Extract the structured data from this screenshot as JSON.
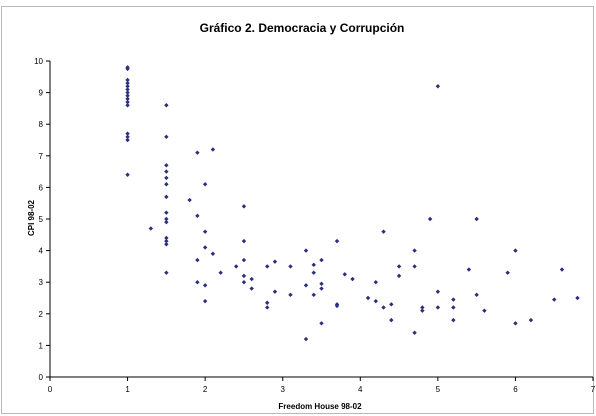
{
  "chart_data": {
    "type": "scatter",
    "title": "Gráfico 2. Democracia y Corrupción",
    "xlabel": "Freedom House 98-02",
    "ylabel": "CPI 98-02",
    "xlim": [
      0,
      7
    ],
    "ylim": [
      0,
      10
    ],
    "x_ticks": [
      0,
      1,
      2,
      3,
      4,
      5,
      6,
      7
    ],
    "y_ticks": [
      0,
      1,
      2,
      3,
      4,
      5,
      6,
      7,
      8,
      9,
      10
    ],
    "grid": false,
    "legend": "none",
    "marker_color": "#2b2f7e",
    "points": [
      {
        "x": 1.0,
        "y": 9.8
      },
      {
        "x": 1.0,
        "y": 9.75
      },
      {
        "x": 1.0,
        "y": 9.4
      },
      {
        "x": 1.0,
        "y": 9.3
      },
      {
        "x": 1.0,
        "y": 9.2
      },
      {
        "x": 1.0,
        "y": 9.1
      },
      {
        "x": 1.0,
        "y": 9.0
      },
      {
        "x": 1.0,
        "y": 8.9
      },
      {
        "x": 1.0,
        "y": 8.8
      },
      {
        "x": 1.0,
        "y": 8.7
      },
      {
        "x": 1.0,
        "y": 8.6
      },
      {
        "x": 1.0,
        "y": 7.7
      },
      {
        "x": 1.0,
        "y": 7.6
      },
      {
        "x": 1.0,
        "y": 7.5
      },
      {
        "x": 1.0,
        "y": 6.4
      },
      {
        "x": 1.3,
        "y": 4.7
      },
      {
        "x": 1.5,
        "y": 8.6
      },
      {
        "x": 1.5,
        "y": 7.6
      },
      {
        "x": 1.5,
        "y": 6.7
      },
      {
        "x": 1.5,
        "y": 6.5
      },
      {
        "x": 1.5,
        "y": 6.3
      },
      {
        "x": 1.5,
        "y": 6.1
      },
      {
        "x": 1.5,
        "y": 5.7
      },
      {
        "x": 1.5,
        "y": 5.2
      },
      {
        "x": 1.5,
        "y": 5.0
      },
      {
        "x": 1.5,
        "y": 4.9
      },
      {
        "x": 1.5,
        "y": 4.4
      },
      {
        "x": 1.5,
        "y": 4.3
      },
      {
        "x": 1.5,
        "y": 4.2
      },
      {
        "x": 1.5,
        "y": 3.3
      },
      {
        "x": 1.8,
        "y": 5.6
      },
      {
        "x": 1.9,
        "y": 7.1
      },
      {
        "x": 1.9,
        "y": 5.1
      },
      {
        "x": 1.9,
        "y": 3.7
      },
      {
        "x": 1.9,
        "y": 3.0
      },
      {
        "x": 2.0,
        "y": 6.1
      },
      {
        "x": 2.0,
        "y": 4.6
      },
      {
        "x": 2.0,
        "y": 4.1
      },
      {
        "x": 2.0,
        "y": 2.9
      },
      {
        "x": 2.0,
        "y": 2.4
      },
      {
        "x": 2.1,
        "y": 7.2
      },
      {
        "x": 2.1,
        "y": 3.9
      },
      {
        "x": 2.2,
        "y": 3.3
      },
      {
        "x": 2.4,
        "y": 3.5
      },
      {
        "x": 2.5,
        "y": 5.4
      },
      {
        "x": 2.5,
        "y": 4.3
      },
      {
        "x": 2.5,
        "y": 3.7
      },
      {
        "x": 2.5,
        "y": 3.2
      },
      {
        "x": 2.5,
        "y": 3.0
      },
      {
        "x": 2.6,
        "y": 2.8
      },
      {
        "x": 2.6,
        "y": 3.1
      },
      {
        "x": 2.8,
        "y": 3.5
      },
      {
        "x": 2.8,
        "y": 2.35
      },
      {
        "x": 2.8,
        "y": 2.2
      },
      {
        "x": 2.9,
        "y": 3.65
      },
      {
        "x": 2.9,
        "y": 2.7
      },
      {
        "x": 3.1,
        "y": 3.5
      },
      {
        "x": 3.1,
        "y": 2.6
      },
      {
        "x": 3.3,
        "y": 4.0
      },
      {
        "x": 3.3,
        "y": 2.9
      },
      {
        "x": 3.3,
        "y": 1.2
      },
      {
        "x": 3.4,
        "y": 3.55
      },
      {
        "x": 3.4,
        "y": 3.3
      },
      {
        "x": 3.4,
        "y": 2.6
      },
      {
        "x": 3.5,
        "y": 3.7
      },
      {
        "x": 3.5,
        "y": 2.95
      },
      {
        "x": 3.5,
        "y": 2.8
      },
      {
        "x": 3.5,
        "y": 1.7
      },
      {
        "x": 3.7,
        "y": 4.3
      },
      {
        "x": 3.7,
        "y": 2.3
      },
      {
        "x": 3.7,
        "y": 2.25
      },
      {
        "x": 3.8,
        "y": 3.25
      },
      {
        "x": 3.9,
        "y": 3.1
      },
      {
        "x": 4.1,
        "y": 2.5
      },
      {
        "x": 4.2,
        "y": 3.0
      },
      {
        "x": 4.2,
        "y": 2.4
      },
      {
        "x": 4.3,
        "y": 4.6
      },
      {
        "x": 4.3,
        "y": 2.2
      },
      {
        "x": 4.4,
        "y": 2.3
      },
      {
        "x": 4.4,
        "y": 1.8
      },
      {
        "x": 4.5,
        "y": 3.5
      },
      {
        "x": 4.5,
        "y": 3.2
      },
      {
        "x": 4.7,
        "y": 4.0
      },
      {
        "x": 4.7,
        "y": 3.5
      },
      {
        "x": 4.7,
        "y": 1.4
      },
      {
        "x": 4.8,
        "y": 2.2
      },
      {
        "x": 4.8,
        "y": 2.1
      },
      {
        "x": 4.9,
        "y": 5.0
      },
      {
        "x": 5.0,
        "y": 9.2
      },
      {
        "x": 5.0,
        "y": 2.7
      },
      {
        "x": 5.0,
        "y": 2.2
      },
      {
        "x": 5.2,
        "y": 2.45
      },
      {
        "x": 5.2,
        "y": 2.2
      },
      {
        "x": 5.2,
        "y": 1.8
      },
      {
        "x": 5.4,
        "y": 3.4
      },
      {
        "x": 5.5,
        "y": 5.0
      },
      {
        "x": 5.5,
        "y": 2.6
      },
      {
        "x": 5.6,
        "y": 2.1
      },
      {
        "x": 5.9,
        "y": 3.3
      },
      {
        "x": 6.0,
        "y": 4.0
      },
      {
        "x": 6.0,
        "y": 1.7
      },
      {
        "x": 6.2,
        "y": 1.8
      },
      {
        "x": 6.5,
        "y": 2.45
      },
      {
        "x": 6.6,
        "y": 3.4
      },
      {
        "x": 6.8,
        "y": 2.5
      }
    ]
  }
}
